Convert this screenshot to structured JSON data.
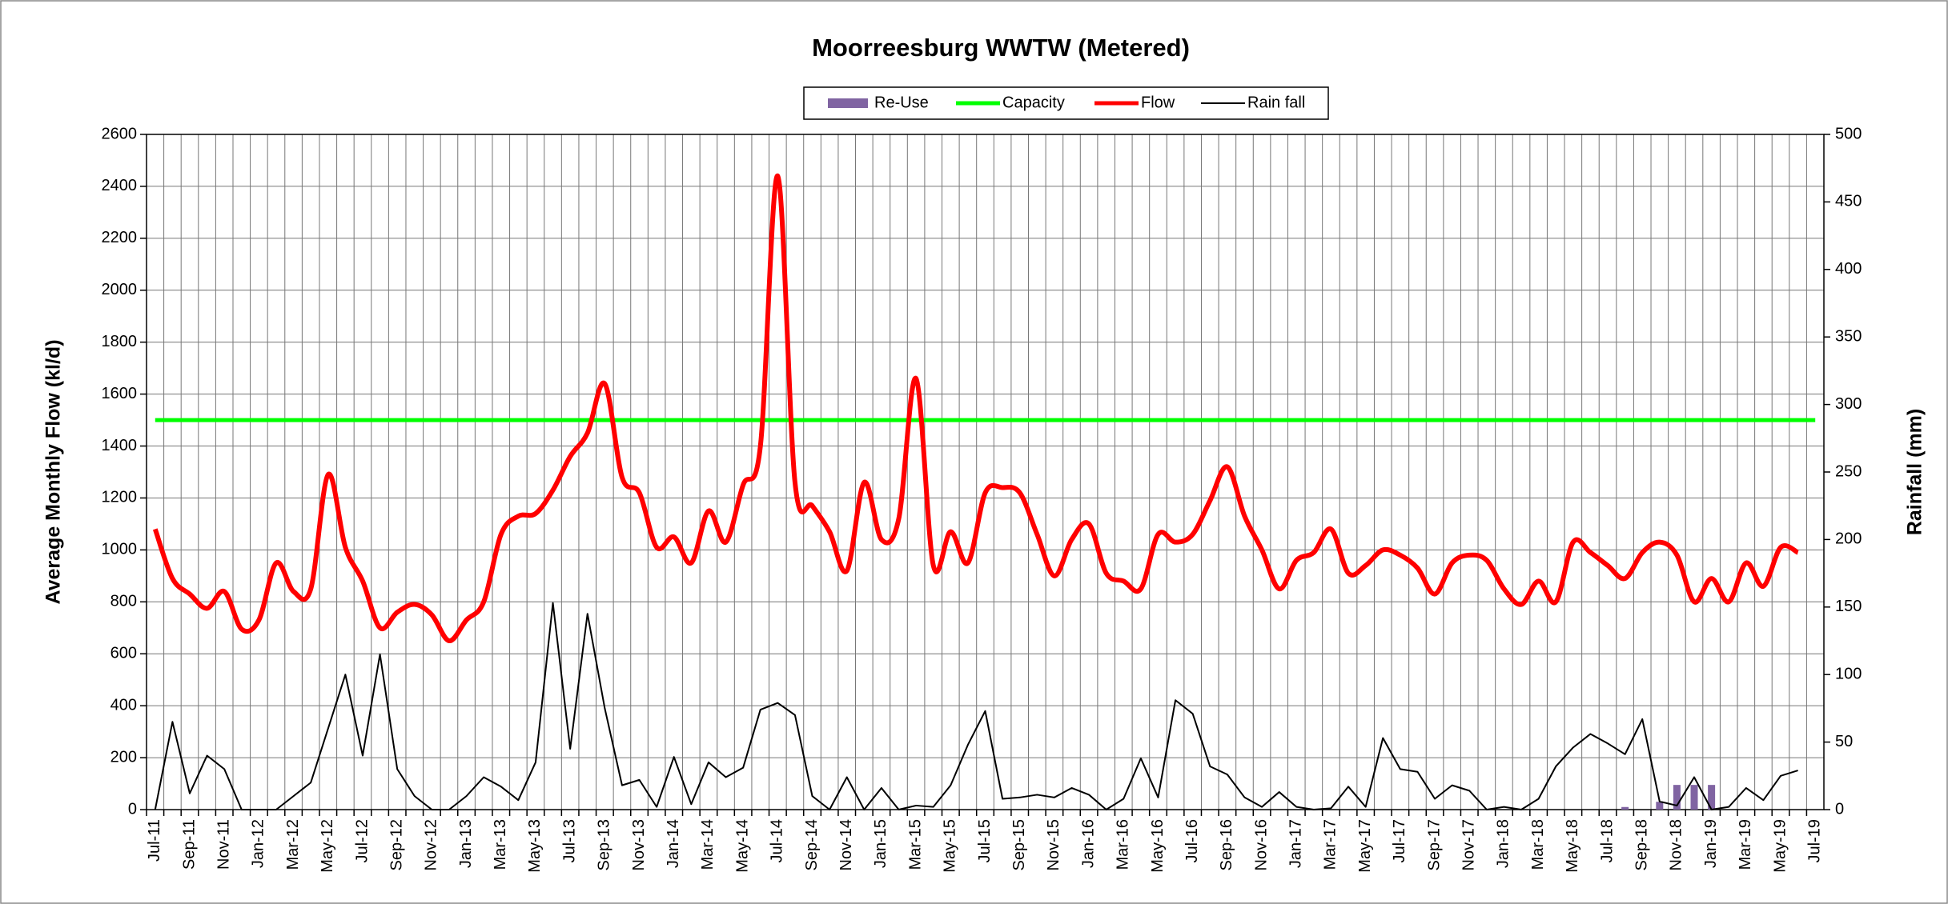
{
  "chart_data": {
    "type": "line",
    "title": "Moorreesburg WWTW (Metered)",
    "y_label": "Average Monthly Flow (kl/d)",
    "y2_label": "Rainfall (mm)",
    "categories": [
      "Jul-11",
      null,
      "Sep-11",
      null,
      "Nov-11",
      null,
      "Jan-12",
      null,
      "Mar-12",
      null,
      "May-12",
      null,
      "Jul-12",
      null,
      "Sep-12",
      null,
      "Nov-12",
      null,
      "Jan-13",
      null,
      "Mar-13",
      null,
      "May-13",
      null,
      "Jul-13",
      null,
      "Sep-13",
      null,
      "Nov-13",
      null,
      "Jan-14",
      null,
      "Mar-14",
      null,
      "May-14",
      null,
      "Jul-14",
      null,
      "Sep-14",
      null,
      "Nov-14",
      null,
      "Jan-15",
      null,
      "Mar-15",
      null,
      "May-15",
      null,
      "Jul-15",
      null,
      "Sep-15",
      null,
      "Nov-15",
      null,
      "Jan-16",
      null,
      "Mar-16",
      null,
      "May-16",
      null,
      "Jul-16",
      null,
      "Sep-16",
      null,
      "Nov-16",
      null,
      "Jan-17",
      null,
      "Mar-17",
      null,
      "May-17",
      null,
      "Jul-17",
      null,
      "Sep-17",
      null,
      "Nov-17",
      null,
      "Jan-18",
      null,
      "Mar-18",
      null,
      "May-18",
      null,
      "Jul-18",
      null,
      "Sep-18",
      null,
      "Nov-18",
      null,
      "Jan-19",
      null,
      "Mar-19",
      null,
      "May-19",
      null,
      "Jul-19"
    ],
    "series": [
      {
        "name": "Re-Use",
        "type": "bar",
        "color": "#8064a2",
        "values": [
          null,
          null,
          null,
          null,
          null,
          null,
          null,
          null,
          null,
          null,
          null,
          null,
          null,
          null,
          null,
          null,
          null,
          null,
          null,
          null,
          null,
          null,
          null,
          null,
          null,
          null,
          null,
          null,
          null,
          null,
          null,
          null,
          null,
          null,
          null,
          null,
          null,
          null,
          null,
          null,
          null,
          null,
          null,
          null,
          null,
          null,
          null,
          null,
          null,
          null,
          null,
          null,
          null,
          null,
          null,
          null,
          null,
          null,
          null,
          null,
          null,
          null,
          null,
          null,
          null,
          null,
          null,
          null,
          null,
          null,
          null,
          null,
          null,
          null,
          null,
          null,
          null,
          null,
          null,
          null,
          null,
          null,
          null,
          null,
          null,
          10,
          null,
          30,
          95,
          95,
          95,
          null,
          null,
          null,
          null,
          null,
          null
        ]
      },
      {
        "name": "Capacity",
        "type": "line",
        "color": "#00ff00",
        "values": [
          1500,
          1500,
          1500,
          1500,
          1500,
          1500,
          1500,
          1500,
          1500,
          1500,
          1500,
          1500,
          1500,
          1500,
          1500,
          1500,
          1500,
          1500,
          1500,
          1500,
          1500,
          1500,
          1500,
          1500,
          1500,
          1500,
          1500,
          1500,
          1500,
          1500,
          1500,
          1500,
          1500,
          1500,
          1500,
          1500,
          1500,
          1500,
          1500,
          1500,
          1500,
          1500,
          1500,
          1500,
          1500,
          1500,
          1500,
          1500,
          1500,
          1500,
          1500,
          1500,
          1500,
          1500,
          1500,
          1500,
          1500,
          1500,
          1500,
          1500,
          1500,
          1500,
          1500,
          1500,
          1500,
          1500,
          1500,
          1500,
          1500,
          1500,
          1500,
          1500,
          1500,
          1500,
          1500,
          1500,
          1500,
          1500,
          1500,
          1500,
          1500,
          1500,
          1500,
          1500,
          1500,
          1500,
          1500,
          1500,
          1500,
          1500,
          1500,
          1500,
          1500,
          1500,
          1500,
          1500,
          1500
        ]
      },
      {
        "name": "Flow",
        "type": "line",
        "smooth": true,
        "color": "#ff0000",
        "values": [
          1080,
          890,
          830,
          775,
          840,
          695,
          730,
          950,
          840,
          850,
          1290,
          1010,
          880,
          700,
          760,
          790,
          750,
          650,
          730,
          800,
          1060,
          1130,
          1140,
          1230,
          1360,
          1450,
          1640,
          1280,
          1220,
          1010,
          1050,
          950,
          1150,
          1030,
          1250,
          1400,
          2440,
          1260,
          1170,
          1070,
          920,
          1260,
          1040,
          1120,
          1660,
          940,
          1070,
          950,
          1220,
          1240,
          1220,
          1060,
          900,
          1040,
          1100,
          910,
          880,
          850,
          1060,
          1030,
          1060,
          1190,
          1320,
          1130,
          1000,
          850,
          960,
          990,
          1080,
          910,
          940,
          1000,
          980,
          930,
          830,
          950,
          980,
          960,
          850,
          790,
          880,
          800,
          1030,
          990,
          940,
          890,
          990,
          1030,
          980,
          800,
          890,
          800,
          950,
          860,
          1010,
          990,
          null
        ]
      },
      {
        "name": "Rain fall",
        "type": "line",
        "axis": "y2",
        "color": "#000000",
        "values": [
          0,
          65,
          12,
          40,
          30,
          0,
          0,
          0,
          10,
          20,
          60,
          100,
          40,
          115,
          30,
          10,
          0,
          0,
          10,
          24,
          17,
          7,
          35,
          153,
          45,
          145,
          75,
          18,
          22,
          2,
          39,
          4,
          35,
          24,
          31,
          74,
          79,
          70,
          10,
          0,
          24,
          0,
          16,
          0,
          3,
          2,
          18,
          48,
          73,
          8,
          9,
          11,
          9,
          16,
          11,
          0,
          8,
          38,
          9,
          81,
          71,
          32,
          26,
          9,
          2,
          13,
          2,
          0,
          1,
          17,
          2,
          53,
          30,
          28,
          8,
          18,
          14,
          0,
          2,
          0,
          8,
          32,
          46,
          56,
          49,
          41,
          67,
          6,
          3,
          24,
          0,
          2,
          16,
          7,
          25,
          29,
          null
        ]
      }
    ],
    "ylim": [
      0,
      2600
    ],
    "yticks": [
      0,
      200,
      400,
      600,
      800,
      1000,
      1200,
      1400,
      1600,
      1800,
      2000,
      2200,
      2400,
      2600
    ],
    "y2lim": [
      0,
      500
    ],
    "y2ticks": [
      0,
      50,
      100,
      150,
      200,
      250,
      300,
      350,
      400,
      450,
      500
    ],
    "grid": true,
    "legend": "top"
  }
}
